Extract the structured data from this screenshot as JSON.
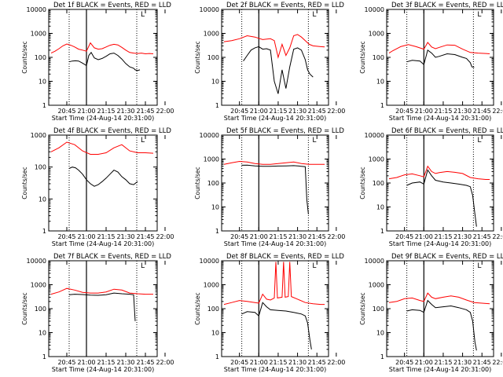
{
  "colors": {
    "events": "#000000",
    "lld": "#ff0000",
    "axis": "#000000",
    "background": "#ffffff"
  },
  "shared": {
    "ylabel": "Counts/sec",
    "xlabel": "Start Time (24-Aug-14 20:31:00)",
    "x_ticks": [
      "20:45",
      "21:00",
      "21:15",
      "21:30",
      "21:45",
      "22:00"
    ],
    "y_ticks": [
      "1",
      "10",
      "100",
      "1000",
      "10000"
    ],
    "corner_mark": "L"
  },
  "chart_data": [
    {
      "type": "line",
      "title": "Det 1f BLACK = Events, RED = LLD",
      "ylog": true,
      "ylim": [
        1,
        10000
      ],
      "series": [
        {
          "color": "red",
          "x": [
            20.55,
            20.6,
            20.65,
            20.7,
            20.75,
            20.8,
            20.85,
            20.9,
            20.95,
            21.0,
            21.05,
            21.1,
            21.15,
            21.2,
            21.25,
            21.3,
            21.35,
            21.4,
            21.45,
            21.5,
            21.55,
            21.6,
            21.65,
            21.7,
            21.75,
            21.8,
            21.85
          ],
          "y": [
            150,
            180,
            230,
            300,
            360,
            320,
            270,
            220,
            200,
            180,
            400,
            250,
            220,
            230,
            270,
            320,
            350,
            330,
            260,
            200,
            160,
            150,
            145,
            150,
            140,
            145,
            140
          ]
        },
        {
          "color": "black",
          "x": [
            20.78,
            20.82,
            20.86,
            20.9,
            20.94,
            20.98,
            21.0,
            21.03,
            21.06,
            21.1,
            21.15,
            21.2,
            21.25,
            21.3,
            21.35,
            21.4,
            21.45,
            21.5,
            21.55,
            21.6,
            21.62,
            21.65,
            21.68
          ],
          "y": [
            65,
            70,
            72,
            70,
            60,
            50,
            45,
            120,
            160,
            95,
            80,
            90,
            110,
            140,
            150,
            120,
            85,
            55,
            40,
            35,
            30,
            28,
            30
          ]
        }
      ]
    },
    {
      "type": "line",
      "title": "Det 2f BLACK = Events, RED = LLD",
      "ylog": true,
      "ylim": [
        1,
        10000
      ],
      "series": [
        {
          "color": "red",
          "x": [
            20.55,
            20.65,
            20.75,
            20.85,
            20.95,
            21.05,
            21.15,
            21.2,
            21.25,
            21.3,
            21.35,
            21.4,
            21.45,
            21.5,
            21.55,
            21.6,
            21.65,
            21.7,
            21.8,
            21.85
          ],
          "y": [
            450,
            500,
            600,
            800,
            700,
            550,
            600,
            500,
            100,
            350,
            120,
            250,
            800,
            900,
            700,
            500,
            350,
            300,
            280,
            270
          ]
        },
        {
          "color": "black",
          "x": [
            20.8,
            20.85,
            20.9,
            20.95,
            21.0,
            21.05,
            21.1,
            21.15,
            21.2,
            21.25,
            21.3,
            21.35,
            21.4,
            21.45,
            21.5,
            21.55,
            21.6,
            21.63,
            21.66,
            21.7
          ],
          "y": [
            70,
            120,
            200,
            250,
            280,
            220,
            230,
            200,
            10,
            3,
            30,
            5,
            40,
            220,
            250,
            200,
            80,
            30,
            20,
            15
          ]
        }
      ]
    },
    {
      "type": "line",
      "title": "Det 3f BLACK = Events, RED = LLD",
      "ylog": true,
      "ylim": [
        1,
        10000
      ],
      "series": [
        {
          "color": "red",
          "x": [
            20.55,
            20.6,
            20.7,
            20.8,
            20.9,
            21.0,
            21.05,
            21.1,
            21.15,
            21.2,
            21.3,
            21.4,
            21.5,
            21.6,
            21.7,
            21.8,
            21.85
          ],
          "y": [
            150,
            190,
            280,
            340,
            280,
            220,
            420,
            270,
            230,
            260,
            330,
            320,
            220,
            160,
            150,
            145,
            140
          ]
        },
        {
          "color": "black",
          "x": [
            20.78,
            20.85,
            20.95,
            21.0,
            21.05,
            21.1,
            21.15,
            21.2,
            21.3,
            21.4,
            21.5,
            21.55,
            21.6,
            21.62,
            21.65
          ],
          "y": [
            65,
            75,
            70,
            50,
            200,
            150,
            100,
            110,
            140,
            130,
            100,
            90,
            60,
            40,
            38
          ]
        }
      ]
    },
    {
      "type": "line",
      "title": "Det 4f BLACK = Events, RED = LLD",
      "ylog": true,
      "ylim": [
        1,
        1000
      ],
      "series": [
        {
          "color": "red",
          "x": [
            20.55,
            20.65,
            20.75,
            20.85,
            20.95,
            21.05,
            21.15,
            21.25,
            21.35,
            21.45,
            21.55,
            21.65,
            21.75,
            21.85
          ],
          "y": [
            300,
            400,
            600,
            500,
            320,
            250,
            250,
            280,
            400,
            500,
            320,
            280,
            280,
            270
          ]
        },
        {
          "color": "black",
          "x": [
            20.78,
            20.82,
            20.86,
            20.9,
            20.95,
            21.0,
            21.05,
            21.1,
            21.15,
            21.2,
            21.25,
            21.3,
            21.35,
            21.4,
            21.45,
            21.5,
            21.55,
            21.6,
            21.65
          ],
          "y": [
            90,
            100,
            95,
            80,
            60,
            40,
            30,
            25,
            28,
            35,
            45,
            60,
            80,
            70,
            50,
            40,
            30,
            28,
            35
          ]
        }
      ]
    },
    {
      "type": "line",
      "title": "Det 5f BLACK = Events, RED = LLD",
      "ylog": true,
      "ylim": [
        1,
        10000
      ],
      "series": [
        {
          "color": "red",
          "x": [
            20.55,
            20.65,
            20.75,
            20.85,
            20.95,
            21.05,
            21.15,
            21.25,
            21.35,
            21.45,
            21.55,
            21.65,
            21.75,
            21.85
          ],
          "y": [
            600,
            700,
            800,
            750,
            650,
            600,
            600,
            650,
            700,
            750,
            650,
            600,
            600,
            600
          ]
        },
        {
          "color": "black",
          "x": [
            20.78,
            20.85,
            20.95,
            21.05,
            21.15,
            21.25,
            21.35,
            21.45,
            21.5,
            21.55,
            21.6,
            21.62,
            21.64
          ],
          "y": [
            550,
            560,
            520,
            500,
            500,
            510,
            520,
            530,
            520,
            500,
            480,
            20,
            5
          ]
        }
      ]
    },
    {
      "type": "line",
      "title": "Det 6f BLACK = Events, RED = LLD",
      "ylog": true,
      "ylim": [
        1,
        10000
      ],
      "series": [
        {
          "color": "red",
          "x": [
            20.55,
            20.65,
            20.75,
            20.85,
            20.95,
            21.0,
            21.05,
            21.1,
            21.15,
            21.2,
            21.3,
            21.4,
            21.5,
            21.6,
            21.7,
            21.8,
            21.85
          ],
          "y": [
            150,
            170,
            220,
            240,
            200,
            180,
            500,
            300,
            250,
            270,
            300,
            280,
            250,
            170,
            150,
            140,
            140
          ]
        },
        {
          "color": "black",
          "x": [
            20.78,
            20.85,
            20.95,
            21.0,
            21.05,
            21.1,
            21.15,
            21.25,
            21.35,
            21.45,
            21.55,
            21.6,
            21.63,
            21.66,
            21.68
          ],
          "y": [
            80,
            100,
            110,
            90,
            350,
            200,
            130,
            110,
            100,
            90,
            80,
            70,
            30,
            5,
            1.5
          ]
        }
      ]
    },
    {
      "type": "line",
      "title": "Det 7f BLACK = Events, RED = LLD",
      "ylog": true,
      "ylim": [
        1,
        10000
      ],
      "series": [
        {
          "color": "red",
          "x": [
            20.55,
            20.65,
            20.75,
            20.85,
            20.95,
            21.05,
            21.15,
            21.25,
            21.35,
            21.45,
            21.55,
            21.65,
            21.75,
            21.85
          ],
          "y": [
            400,
            500,
            700,
            600,
            480,
            450,
            450,
            500,
            650,
            600,
            450,
            420,
            400,
            400
          ]
        },
        {
          "color": "black",
          "x": [
            20.78,
            20.85,
            20.95,
            21.05,
            21.15,
            21.25,
            21.35,
            21.45,
            21.55,
            21.6,
            21.62
          ],
          "y": [
            380,
            400,
            390,
            370,
            360,
            380,
            450,
            420,
            400,
            380,
            30
          ]
        }
      ]
    },
    {
      "type": "line",
      "title": "Det 8f BLACK = Events, RED = LLD",
      "ylog": true,
      "ylim": [
        1,
        10000
      ],
      "series": [
        {
          "color": "red",
          "x": [
            20.55,
            20.65,
            20.75,
            20.85,
            20.95,
            21.0,
            21.05,
            21.1,
            21.15,
            21.2,
            21.22,
            21.24,
            21.3,
            21.32,
            21.34,
            21.38,
            21.4,
            21.42,
            21.5,
            21.6,
            21.7,
            21.8,
            21.85
          ],
          "y": [
            150,
            180,
            220,
            200,
            180,
            170,
            400,
            250,
            230,
            280,
            9000,
            280,
            300,
            9000,
            300,
            320,
            9000,
            320,
            250,
            180,
            160,
            150,
            150
          ]
        },
        {
          "color": "black",
          "x": [
            20.78,
            20.85,
            20.95,
            21.0,
            21.05,
            21.1,
            21.15,
            21.25,
            21.35,
            21.45,
            21.55,
            21.6,
            21.63,
            21.66,
            21.68
          ],
          "y": [
            60,
            75,
            70,
            50,
            180,
            120,
            90,
            85,
            80,
            70,
            60,
            50,
            25,
            5,
            2
          ]
        }
      ]
    },
    {
      "type": "line",
      "title": "Det 9f BLACK = Events, RED = LLD",
      "ylog": true,
      "ylim": [
        1,
        10000
      ],
      "series": [
        {
          "color": "red",
          "x": [
            20.55,
            20.65,
            20.75,
            20.85,
            20.95,
            21.0,
            21.05,
            21.1,
            21.15,
            21.25,
            21.35,
            21.45,
            21.55,
            21.65,
            21.75,
            21.85
          ],
          "y": [
            180,
            200,
            260,
            280,
            220,
            200,
            450,
            300,
            260,
            300,
            340,
            300,
            230,
            180,
            170,
            160
          ]
        },
        {
          "color": "black",
          "x": [
            20.78,
            20.85,
            20.95,
            21.0,
            21.05,
            21.1,
            21.15,
            21.25,
            21.35,
            21.45,
            21.55,
            21.6,
            21.63,
            21.66,
            21.68
          ],
          "y": [
            80,
            90,
            85,
            70,
            220,
            150,
            110,
            120,
            130,
            110,
            90,
            70,
            30,
            4,
            1.8
          ]
        }
      ]
    }
  ]
}
